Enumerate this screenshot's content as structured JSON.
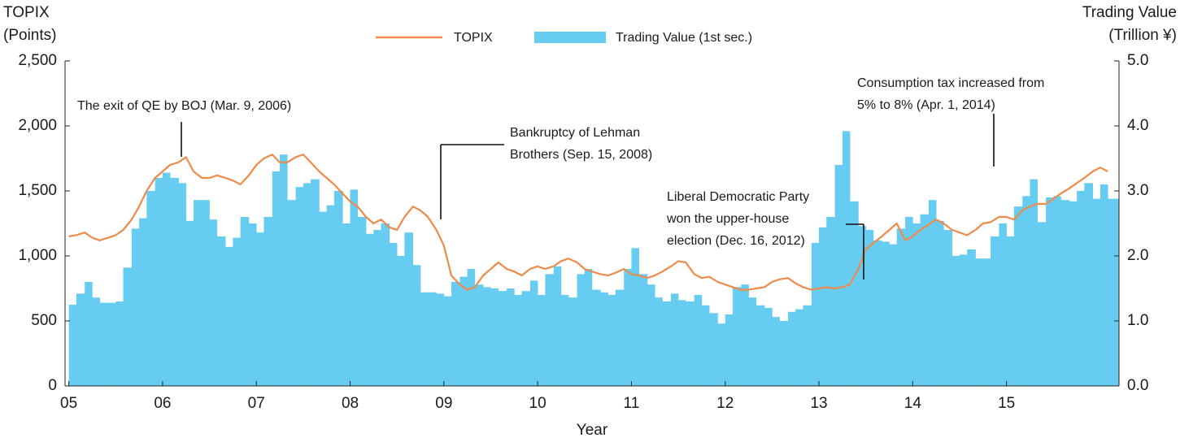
{
  "chart_data": {
    "type": "bar-line",
    "y_title": [
      "TOPIX",
      "(Points)"
    ],
    "y2_title": [
      "Trading Value",
      "(Trillion ¥)"
    ],
    "x_title": "Year",
    "xlim": [
      2004.96,
      2016.2
    ],
    "xticks": [
      {
        "value": 2005,
        "label": "05"
      },
      {
        "value": 2006,
        "label": "06"
      },
      {
        "value": 2007,
        "label": "07"
      },
      {
        "value": 2008,
        "label": "08"
      },
      {
        "value": 2009,
        "label": "09"
      },
      {
        "value": 2010,
        "label": "10"
      },
      {
        "value": 2011,
        "label": "11"
      },
      {
        "value": 2012,
        "label": "12"
      },
      {
        "value": 2013,
        "label": "13"
      },
      {
        "value": 2014,
        "label": "14"
      },
      {
        "value": 2015,
        "label": "15"
      }
    ],
    "ylim": [
      0,
      2500
    ],
    "yticks": [
      0,
      500,
      {
        "value": 1000,
        "label": "1,000"
      },
      {
        "value": 1500,
        "label": "1,500"
      },
      {
        "value": 2000,
        "label": "2,000"
      },
      {
        "value": 2500,
        "label": "2,500"
      }
    ],
    "y2lim": [
      0,
      5
    ],
    "y2ticks": [
      {
        "value": 0,
        "label": "0.0"
      },
      {
        "value": 1,
        "label": "1.0"
      },
      {
        "value": 2,
        "label": "2.0"
      },
      {
        "value": 3,
        "label": "3.0"
      },
      {
        "value": 4,
        "label": "4.0"
      },
      {
        "value": 5,
        "label": "5.0"
      }
    ],
    "x": [
      2005,
      2005.08,
      2005.17,
      2005.25,
      2005.33,
      2005.42,
      2005.5,
      2005.58,
      2005.67,
      2005.75,
      2005.83,
      2005.92,
      2006,
      2006.08,
      2006.17,
      2006.25,
      2006.33,
      2006.42,
      2006.5,
      2006.58,
      2006.67,
      2006.75,
      2006.83,
      2006.92,
      2007,
      2007.08,
      2007.17,
      2007.25,
      2007.33,
      2007.42,
      2007.5,
      2007.58,
      2007.67,
      2007.75,
      2007.83,
      2007.92,
      2008,
      2008.08,
      2008.17,
      2008.25,
      2008.33,
      2008.42,
      2008.5,
      2008.58,
      2008.67,
      2008.75,
      2008.83,
      2008.92,
      2009,
      2009.08,
      2009.17,
      2009.25,
      2009.33,
      2009.42,
      2009.5,
      2009.58,
      2009.67,
      2009.75,
      2009.83,
      2009.92,
      2010,
      2010.08,
      2010.17,
      2010.25,
      2010.33,
      2010.42,
      2010.5,
      2010.58,
      2010.67,
      2010.75,
      2010.83,
      2010.92,
      2011,
      2011.08,
      2011.17,
      2011.25,
      2011.33,
      2011.42,
      2011.5,
      2011.58,
      2011.67,
      2011.75,
      2011.83,
      2011.92,
      2012,
      2012.08,
      2012.17,
      2012.25,
      2012.33,
      2012.42,
      2012.5,
      2012.58,
      2012.67,
      2012.75,
      2012.83,
      2012.92,
      2013,
      2013.08,
      2013.17,
      2013.25,
      2013.33,
      2013.42,
      2013.5,
      2013.58,
      2013.67,
      2013.75,
      2013.83,
      2013.92,
      2014,
      2014.08,
      2014.17,
      2014.25,
      2014.33,
      2014.42,
      2014.5,
      2014.58,
      2014.67,
      2014.75,
      2014.83,
      2014.92,
      2015,
      2015.08,
      2015.17,
      2015.25,
      2015.33,
      2015.42,
      2015.5,
      2015.58,
      2015.67,
      2015.75,
      2015.83,
      2015.92,
      2016,
      2016.08
    ],
    "series": [
      {
        "name": "Trading Value (1st sec.)",
        "type": "bar",
        "axis": "y2",
        "color": "#66ccf2",
        "values": [
          1.25,
          1.42,
          1.6,
          1.36,
          1.28,
          1.28,
          1.3,
          1.82,
          2.42,
          2.58,
          3.0,
          3.2,
          3.28,
          3.2,
          3.12,
          2.54,
          2.86,
          2.86,
          2.56,
          2.3,
          2.14,
          2.28,
          2.6,
          2.5,
          2.36,
          2.6,
          3.3,
          3.56,
          2.86,
          3.06,
          3.12,
          3.18,
          2.68,
          2.78,
          3.0,
          2.5,
          3.02,
          2.6,
          2.34,
          2.4,
          2.5,
          2.2,
          2.0,
          2.36,
          1.86,
          1.44,
          1.44,
          1.42,
          1.38,
          1.6,
          1.68,
          1.8,
          1.56,
          1.52,
          1.5,
          1.46,
          1.5,
          1.4,
          1.46,
          1.62,
          1.4,
          1.72,
          1.84,
          1.4,
          1.36,
          1.72,
          1.8,
          1.48,
          1.44,
          1.4,
          1.48,
          1.8,
          2.12,
          1.72,
          1.56,
          1.36,
          1.3,
          1.42,
          1.32,
          1.3,
          1.4,
          1.24,
          1.12,
          0.96,
          1.1,
          1.52,
          1.56,
          1.36,
          1.24,
          1.2,
          1.06,
          1.0,
          1.14,
          1.18,
          1.24,
          2.2,
          2.44,
          2.6,
          3.4,
          3.92,
          2.84,
          2.46,
          2.4,
          2.24,
          2.22,
          2.18,
          2.42,
          2.6,
          2.5,
          2.64,
          2.86,
          2.54,
          2.4,
          2.0,
          2.02,
          2.1,
          1.96,
          1.96,
          2.3,
          2.5,
          2.3,
          2.76,
          2.92,
          3.18,
          2.52,
          2.9,
          2.92,
          2.86,
          2.84,
          3.0,
          3.12,
          2.88,
          3.1,
          2.88
        ]
      },
      {
        "name": "TOPIX",
        "type": "line",
        "axis": "y",
        "color": "#ee8a4a",
        "values": [
          1150,
          1160,
          1180,
          1140,
          1120,
          1140,
          1160,
          1200,
          1280,
          1380,
          1500,
          1600,
          1650,
          1700,
          1720,
          1760,
          1650,
          1600,
          1600,
          1620,
          1600,
          1580,
          1550,
          1620,
          1700,
          1750,
          1780,
          1720,
          1720,
          1760,
          1780,
          1720,
          1650,
          1600,
          1550,
          1480,
          1420,
          1380,
          1300,
          1250,
          1280,
          1220,
          1200,
          1300,
          1380,
          1350,
          1300,
          1200,
          1080,
          850,
          780,
          740,
          760,
          850,
          900,
          950,
          900,
          880,
          850,
          900,
          920,
          900,
          920,
          960,
          980,
          950,
          900,
          880,
          860,
          850,
          870,
          900,
          860,
          850,
          830,
          850,
          880,
          920,
          960,
          950,
          860,
          830,
          840,
          800,
          780,
          760,
          740,
          740,
          750,
          760,
          800,
          820,
          830,
          790,
          760,
          740,
          750,
          760,
          750,
          760,
          780,
          900,
          1050,
          1100,
          1150,
          1200,
          1250,
          1120,
          1150,
          1200,
          1240,
          1280,
          1250,
          1200,
          1180,
          1160,
          1200,
          1250,
          1260,
          1300,
          1300,
          1280,
          1350,
          1380,
          1400,
          1400,
          1440,
          1480,
          1520,
          1560,
          1600,
          1650,
          1680,
          1650
        ]
      }
    ],
    "annotations": [
      {
        "text": [
          "The exit of QE by BOJ (Mar. 9, 2006)"
        ]
      },
      {
        "text": [
          "Bankruptcy of Lehman",
          "Brothers (Sep. 15, 2008)"
        ]
      },
      {
        "text": [
          "Liberal Democratic Party",
          "won the upper-house",
          "election (Dec. 16, 2012)"
        ]
      },
      {
        "text": [
          "Consumption tax increased from",
          "5% to 8% (Apr. 1, 2014)"
        ]
      }
    ]
  }
}
